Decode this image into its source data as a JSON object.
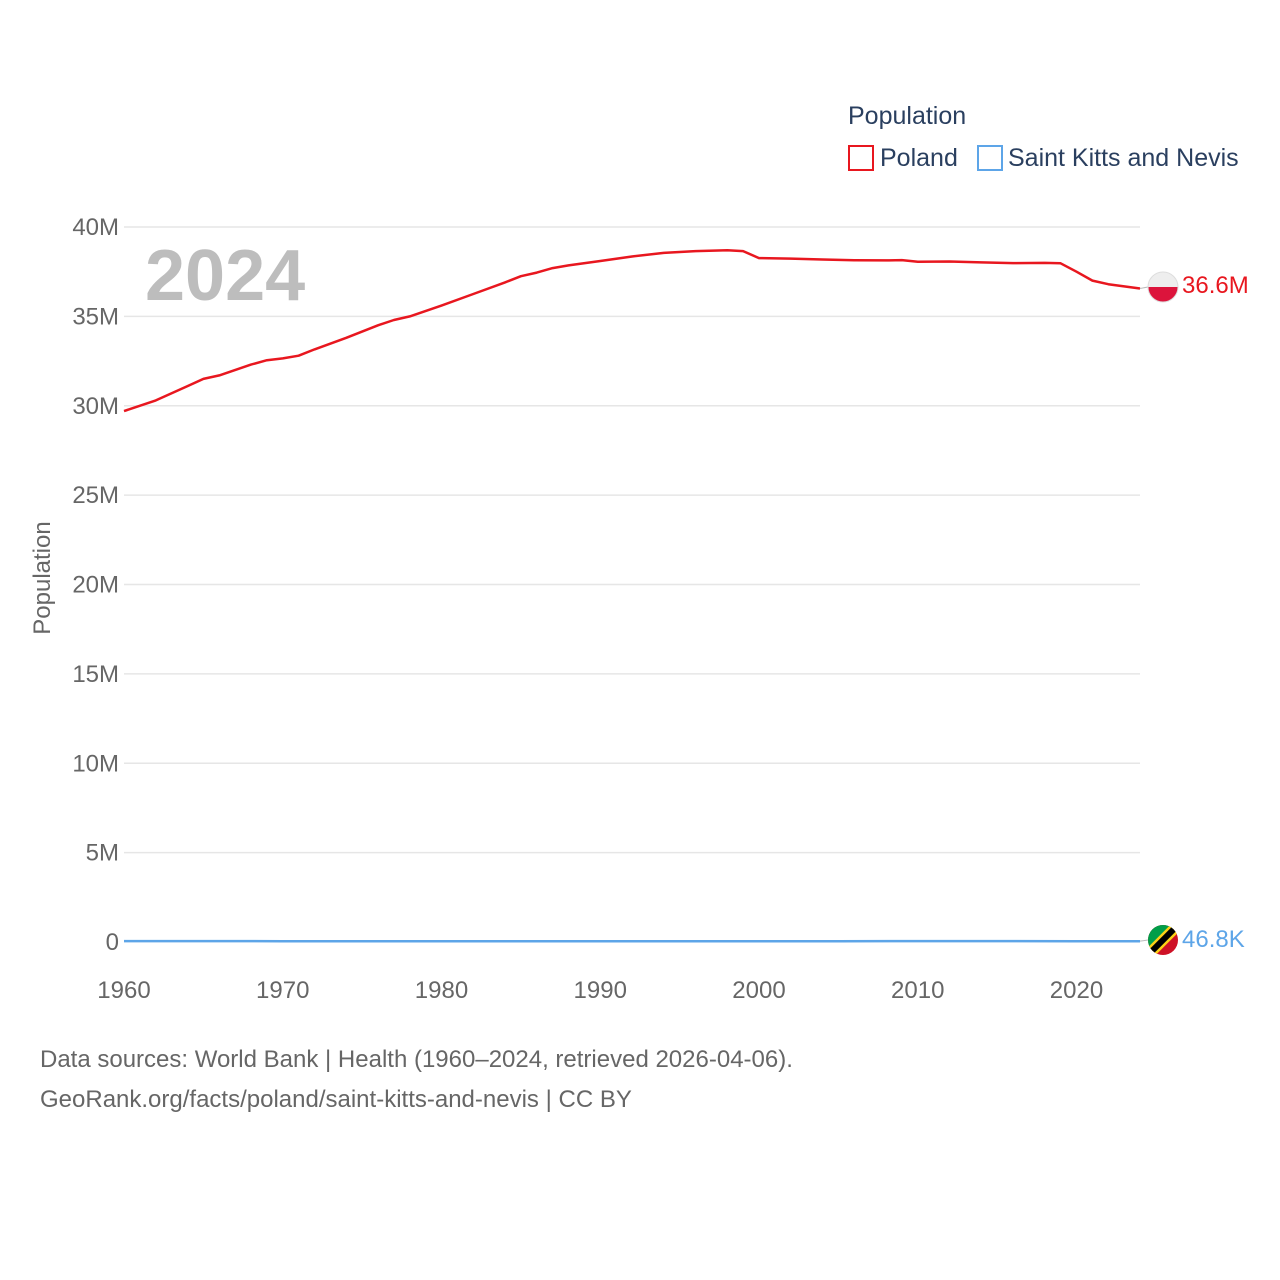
{
  "chart_data": {
    "type": "line",
    "year_label": "2024",
    "ylabel": "Population",
    "ylim": [
      0,
      40000000
    ],
    "xlim": [
      1960,
      2024
    ],
    "x_ticks": [
      1960,
      1970,
      1980,
      1990,
      2000,
      2010,
      2020
    ],
    "x_tick_labels": [
      "1960",
      "1970",
      "1980",
      "1990",
      "2000",
      "2010",
      "2020"
    ],
    "y_ticks": [
      0,
      5000000,
      10000000,
      15000000,
      20000000,
      25000000,
      30000000,
      35000000,
      40000000
    ],
    "y_tick_labels": [
      "0",
      "5M",
      "10M",
      "15M",
      "20M",
      "25M",
      "30M",
      "35M",
      "40M"
    ],
    "legend": {
      "title": "Population",
      "entries": [
        "Poland",
        "Saint Kitts and Nevis"
      ]
    },
    "series": [
      {
        "name": "Poland",
        "color": "#e8171f",
        "end_label": "36.6M",
        "x": [
          1960,
          1962,
          1964,
          1965,
          1966,
          1968,
          1969,
          1970,
          1971,
          1972,
          1974,
          1976,
          1977,
          1978,
          1980,
          1982,
          1984,
          1985,
          1986,
          1987,
          1988,
          1990,
          1992,
          1994,
          1996,
          1998,
          1999,
          2000,
          2002,
          2004,
          2006,
          2008,
          2009,
          2010,
          2012,
          2014,
          2016,
          2018,
          2019,
          2020,
          2021,
          2022,
          2024
        ],
        "y": [
          29700000,
          30300000,
          31100000,
          31500000,
          31700000,
          32300000,
          32550000,
          32650000,
          32800000,
          33150000,
          33800000,
          34500000,
          34800000,
          35000000,
          35600000,
          36250000,
          36900000,
          37250000,
          37450000,
          37700000,
          37850000,
          38100000,
          38350000,
          38550000,
          38650000,
          38700000,
          38650000,
          38260000,
          38230000,
          38180000,
          38140000,
          38130000,
          38150000,
          38060000,
          38070000,
          38020000,
          37980000,
          37990000,
          37970000,
          37500000,
          37000000,
          36800000,
          36560000
        ]
      },
      {
        "name": "Saint Kitts and Nevis",
        "color": "#5da5e8",
        "end_label": "46.8K",
        "x": [
          1960,
          1965,
          1970,
          1975,
          1980,
          1985,
          1990,
          1995,
          2000,
          2005,
          2010,
          2015,
          2020,
          2024
        ],
        "y": [
          51000,
          49000,
          45000,
          42000,
          43000,
          42000,
          41000,
          42000,
          45000,
          47000,
          49000,
          50000,
          47500,
          46800
        ]
      }
    ]
  },
  "footer": {
    "line1": "Data sources: World Bank | Health (1960–2024, retrieved 2026-04-06).",
    "line2": "GeoRank.org/facts/poland/saint-kitts-and-nevis | CC BY"
  }
}
